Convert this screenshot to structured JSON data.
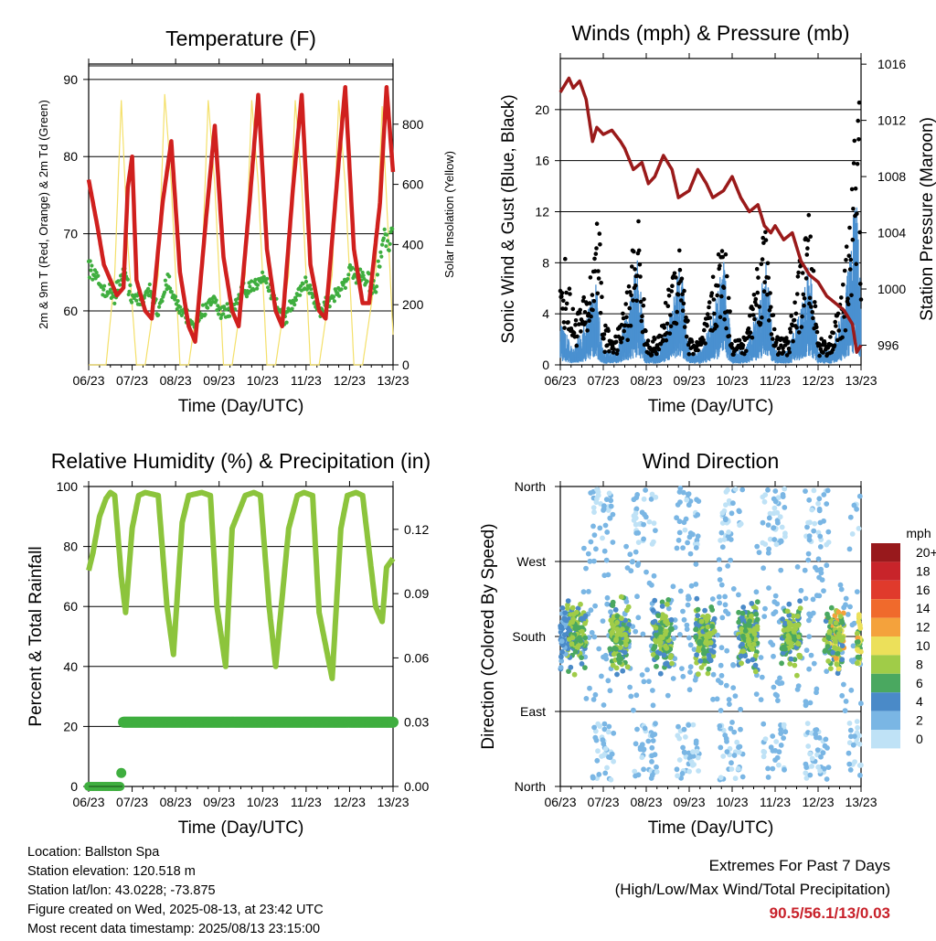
{
  "xticks": [
    "06/23",
    "07/23",
    "08/23",
    "09/23",
    "10/23",
    "11/23",
    "12/23",
    "13/23"
  ],
  "xlabel": "Time (Day/UTC)",
  "colors": {
    "temp": "#d0201e",
    "dew": "#3fae3f",
    "solar": "#f4e06a",
    "wind": "#4a90d0",
    "gust": "#000000",
    "pressure": "#9a1a1a",
    "rh": "#8cc43c",
    "precip": "#3fae3f"
  },
  "temp": {
    "title": "Temperature (F)",
    "ylabel_left": "2m & 9m T (Red, Orange) & 2m Td (Green)",
    "ylabel_right": "Solar Insolation (Yellow)",
    "yticks_left": [
      "60",
      "70",
      "80",
      "90"
    ],
    "yticks_right": [
      "0",
      "200",
      "400",
      "600",
      "800"
    ]
  },
  "wind": {
    "title": "Winds (mph) & Pressure (mb)",
    "ylabel_left": "Sonic Wind & Gust (Blue, Black)",
    "ylabel_right": "Station Pressure (Maroon)",
    "yticks_left": [
      "0",
      "4",
      "8",
      "12",
      "16",
      "20"
    ],
    "yticks_right": [
      "996",
      "1000",
      "1004",
      "1008",
      "1012",
      "1016"
    ]
  },
  "rh": {
    "title": "Relative Humidity (%) & Precipitation (in)",
    "ylabel_left": "Percent & Total Rainfall",
    "yticks_left": [
      "0",
      "20",
      "40",
      "60",
      "80",
      "100"
    ],
    "yticks_right": [
      "0.00",
      "0.03",
      "0.06",
      "0.09",
      "0.12"
    ]
  },
  "dir": {
    "title": "Wind Direction",
    "ylabel_left": "Direction (Colored By Speed)",
    "yticks_left": [
      "North",
      "East",
      "South",
      "West",
      "North"
    ],
    "legend_title": "mph",
    "legend_labels": [
      "20+",
      "18",
      "16",
      "14",
      "12",
      "10",
      "8",
      "6",
      "4",
      "2",
      "0"
    ],
    "legend_colors": [
      "#98191c",
      "#c8242a",
      "#e03a2c",
      "#f06a2c",
      "#f4a23c",
      "#ece05a",
      "#a0cc48",
      "#4aa860",
      "#4a8ac8",
      "#7ab6e4",
      "#bfe2f6"
    ]
  },
  "chart_data": [
    {
      "type": "line",
      "title": "Temperature (F)",
      "xlabel": "Time (Day/UTC)",
      "ylabel": "2m & 9m T (Red, Orange) & 2m Td (Green)",
      "ylabel_right": "Solar Insolation (Yellow)",
      "x": [
        "06/23",
        "07/23",
        "08/23",
        "09/23",
        "10/23",
        "11/23",
        "12/23",
        "13/23"
      ],
      "ylim": [
        53,
        92
      ],
      "ylim_right": [
        0,
        1000
      ],
      "series": [
        {
          "name": "2m T",
          "x": [
            6.0,
            6.2,
            6.35,
            6.5,
            6.65,
            6.8,
            6.9,
            7.0,
            7.1,
            7.3,
            7.45,
            7.7,
            7.9,
            8.1,
            8.3,
            8.45,
            8.7,
            8.9,
            9.1,
            9.3,
            9.45,
            9.7,
            9.9,
            10.1,
            10.3,
            10.45,
            10.7,
            10.9,
            11.1,
            11.3,
            11.45,
            11.7,
            11.9,
            12.1,
            12.3,
            12.45,
            12.7,
            12.85,
            13.0
          ],
          "values": [
            77,
            71,
            66,
            64,
            62,
            63,
            76,
            80,
            64,
            60,
            59,
            74,
            82,
            65,
            58,
            56,
            72,
            84,
            67,
            60,
            58,
            74,
            88,
            68,
            60,
            58,
            76,
            88,
            66,
            60,
            59,
            76,
            89,
            68,
            61,
            61,
            74,
            89,
            78
          ]
        },
        {
          "name": "2m Td",
          "x": [
            6.0,
            6.3,
            6.6,
            6.8,
            7.0,
            7.2,
            7.4,
            7.6,
            7.8,
            8.0,
            8.3,
            8.5,
            8.8,
            9.0,
            9.3,
            9.5,
            9.8,
            10.0,
            10.3,
            10.5,
            10.8,
            11.0,
            11.3,
            11.5,
            11.8,
            12.0,
            12.3,
            12.6,
            12.8,
            12.9,
            13.0
          ],
          "values": [
            66,
            63,
            62,
            65,
            62,
            61,
            63,
            60,
            64,
            61,
            59,
            58,
            62,
            60,
            60,
            62,
            63,
            65,
            61,
            59,
            62,
            64,
            60,
            61,
            63,
            65,
            64,
            63,
            70,
            68,
            71
          ]
        },
        {
          "name": "Solar Insolation",
          "x": [
            6.0,
            6.4,
            6.6,
            6.75,
            6.9,
            7.1,
            7.3,
            7.6,
            7.75,
            7.9,
            8.1,
            8.3,
            8.6,
            8.75,
            8.9,
            9.1,
            9.3,
            9.6,
            9.75,
            9.9,
            10.1,
            10.3,
            10.6,
            10.75,
            10.9,
            11.1,
            11.3,
            11.6,
            11.75,
            11.9,
            12.1,
            12.3,
            12.6,
            12.75,
            12.9,
            13.0
          ],
          "values": [
            0,
            0,
            300,
            880,
            400,
            0,
            0,
            300,
            900,
            600,
            0,
            0,
            300,
            880,
            600,
            0,
            0,
            300,
            880,
            600,
            0,
            0,
            300,
            880,
            600,
            0,
            0,
            300,
            880,
            600,
            0,
            0,
            300,
            860,
            400,
            100
          ]
        }
      ]
    },
    {
      "type": "line",
      "title": "Winds (mph) & Pressure (mb)",
      "xlabel": "Time (Day/UTC)",
      "ylabel": "Sonic Wind & Gust (Blue, Black)",
      "ylabel_right": "Station Pressure (Maroon)",
      "x": [
        "06/23",
        "07/23",
        "08/23",
        "09/23",
        "10/23",
        "11/23",
        "12/23",
        "13/23"
      ],
      "ylim": [
        0,
        24
      ],
      "ylim_right": [
        994.6,
        1016.4
      ],
      "series": [
        {
          "name": "Station Pressure",
          "x": [
            6.0,
            6.1,
            6.2,
            6.3,
            6.45,
            6.6,
            6.75,
            6.85,
            7.0,
            7.2,
            7.4,
            7.5,
            7.7,
            7.9,
            8.05,
            8.2,
            8.4,
            8.6,
            8.75,
            9.0,
            9.2,
            9.4,
            9.55,
            9.8,
            10.0,
            10.2,
            10.4,
            10.6,
            10.75,
            10.9,
            11.0,
            11.2,
            11.4,
            11.6,
            11.8,
            12.0,
            12.2,
            12.4,
            12.6,
            12.8,
            12.9,
            13.0
          ],
          "values": [
            1014,
            1014.5,
            1015,
            1014.3,
            1014.8,
            1013.5,
            1010.5,
            1011.5,
            1011,
            1011.3,
            1010.5,
            1010,
            1008.5,
            1009,
            1007.5,
            1008,
            1009.5,
            1008.5,
            1006.5,
            1007,
            1008.5,
            1007.5,
            1006.5,
            1007,
            1008,
            1006.5,
            1005.5,
            1006,
            1004.5,
            1004,
            1004.5,
            1003.5,
            1004,
            1002,
            1001,
            1000.5,
            999.5,
            999,
            998.5,
            997.5,
            995.5,
            996
          ]
        },
        {
          "name": "Sonic Wind",
          "x": [
            6.0,
            6.3,
            6.6,
            6.8,
            7.0,
            7.3,
            7.6,
            7.8,
            8.0,
            8.3,
            8.6,
            8.8,
            9.0,
            9.3,
            9.6,
            9.8,
            10.0,
            10.3,
            10.6,
            10.8,
            11.0,
            11.3,
            11.6,
            11.8,
            12.0,
            12.3,
            12.6,
            12.8,
            12.9,
            13.0
          ],
          "values": [
            3,
            1,
            3,
            6,
            1,
            1,
            4,
            7,
            1,
            1,
            4,
            7,
            1,
            1,
            4,
            7,
            1,
            1,
            4,
            7,
            1,
            1,
            4,
            7,
            1,
            1,
            4,
            9,
            12,
            4
          ]
        },
        {
          "name": "Gust",
          "x": [
            6.0,
            6.1,
            6.3,
            6.6,
            6.8,
            6.85,
            7.0,
            7.3,
            7.6,
            7.8,
            8.0,
            8.3,
            8.6,
            8.8,
            9.0,
            9.3,
            9.6,
            9.8,
            10.0,
            10.3,
            10.6,
            10.8,
            11.0,
            11.3,
            11.6,
            11.8,
            12.0,
            12.3,
            12.6,
            12.8,
            12.95,
            13.0
          ],
          "values": [
            6,
            8,
            4,
            5,
            9,
            15,
            3,
            2,
            6,
            12,
            2,
            2,
            7,
            10,
            2,
            2,
            7,
            10,
            2,
            2,
            8,
            11,
            2,
            2,
            8,
            11,
            2,
            2,
            6,
            14,
            22,
            6
          ]
        }
      ]
    },
    {
      "type": "line",
      "title": "Relative Humidity (%) & Precipitation (in)",
      "xlabel": "Time (Day/UTC)",
      "ylabel": "Percent & Total Rainfall",
      "x": [
        "06/23",
        "07/23",
        "08/23",
        "09/23",
        "10/23",
        "11/23",
        "12/23",
        "13/23"
      ],
      "ylim": [
        0,
        100
      ],
      "ylim_right": [
        0,
        0.14
      ],
      "series": [
        {
          "name": "Relative Humidity",
          "x": [
            6.0,
            6.1,
            6.25,
            6.4,
            6.5,
            6.6,
            6.75,
            6.85,
            7.0,
            7.15,
            7.3,
            7.6,
            7.8,
            7.95,
            8.15,
            8.3,
            8.6,
            8.8,
            8.95,
            9.15,
            9.3,
            9.6,
            9.8,
            9.95,
            10.15,
            10.3,
            10.6,
            10.8,
            10.95,
            11.15,
            11.3,
            11.6,
            11.8,
            11.95,
            12.15,
            12.3,
            12.6,
            12.75,
            12.85,
            13.0
          ],
          "values": [
            72,
            78,
            90,
            96,
            98,
            97,
            70,
            58,
            86,
            97,
            98,
            97,
            60,
            44,
            88,
            97,
            98,
            97,
            60,
            40,
            86,
            97,
            98,
            97,
            60,
            40,
            86,
            97,
            98,
            97,
            58,
            36,
            86,
            97,
            98,
            97,
            60,
            55,
            73,
            76
          ]
        },
        {
          "name": "Total Precipitation",
          "x": [
            6.0,
            6.4,
            6.75,
            6.8,
            13.0
          ],
          "values": [
            0,
            0,
            0,
            0.03,
            0.03
          ]
        }
      ]
    },
    {
      "type": "scatter",
      "title": "Wind Direction",
      "xlabel": "Time (Day/UTC)",
      "ylabel": "Direction (Colored By Speed)",
      "x": [
        "06/23",
        "07/23",
        "08/23",
        "09/23",
        "10/23",
        "11/23",
        "12/23",
        "13/23"
      ],
      "yticks": [
        "North",
        "East",
        "South",
        "West",
        "North"
      ],
      "colorbar": {
        "title": "mph",
        "labels": [
          "20+",
          "18",
          "16",
          "14",
          "12",
          "10",
          "8",
          "6",
          "4",
          "2",
          "0"
        ]
      }
    }
  ],
  "info": {
    "location": "Location: Ballston Spa",
    "elevation": "Station elevation: 120.518 m",
    "latlon": "Station lat/lon: 43.0228; -73.875",
    "created": "Figure created on Wed, 2025-08-13, at 23:42 UTC",
    "recent": "Most recent data timestamp: 2025/08/13 23:15:00"
  },
  "extremes": {
    "title": "Extremes For Past 7 Days",
    "subtitle": "(High/Low/Max Wind/Total Precipitation)",
    "values": "90.5/56.1/13/0.03"
  }
}
